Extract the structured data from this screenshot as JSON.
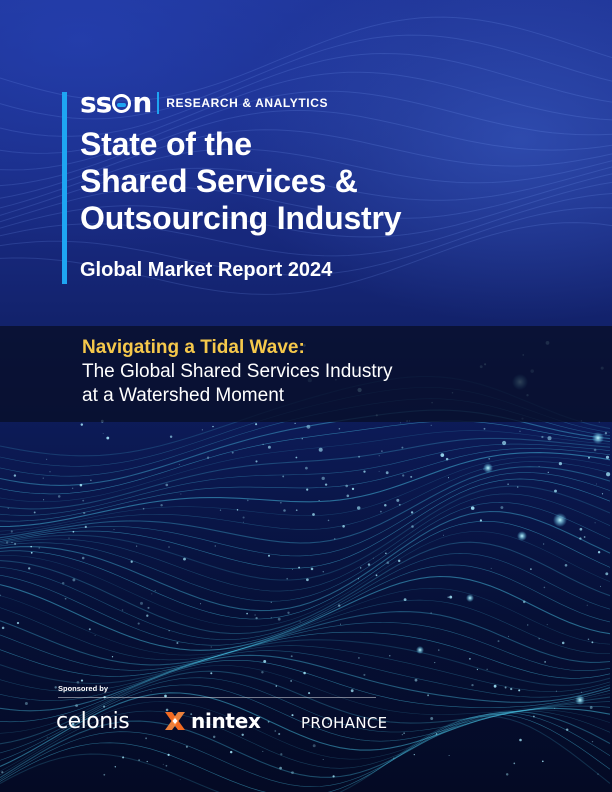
{
  "brand": {
    "logo_text": "SSON",
    "division": "RESEARCH & ANALYTICS",
    "accent_color": "#1ea5f2"
  },
  "report": {
    "title_lines": [
      "State of the",
      "Shared Services &",
      "Outsourcing Industry"
    ],
    "subtitle": "Global Market Report 2024"
  },
  "feature": {
    "highlight": "Navigating a Tidal Wave:",
    "lines": [
      "The Global Shared Services Industry",
      "at a Watershed Moment"
    ],
    "highlight_color": "#f5c84b"
  },
  "sponsors": {
    "label": "Sponsored by",
    "names": [
      "celonis",
      "nintex",
      "PROHANCE"
    ]
  }
}
